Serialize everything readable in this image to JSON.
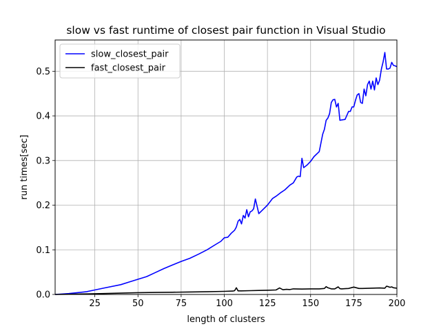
{
  "chart_data": {
    "type": "line",
    "title": "slow vs fast runtime of closest pair function in Visual Studio",
    "xlabel": "length of clusters",
    "ylabel": "run times[sec]",
    "xlim": [
      2,
      200
    ],
    "ylim": [
      0,
      0.57
    ],
    "xticks": [
      25,
      50,
      75,
      100,
      125,
      150,
      175,
      200
    ],
    "yticks": [
      0.0,
      0.1,
      0.2,
      0.3,
      0.4,
      0.5
    ],
    "grid": true,
    "legend_position": "upper-left",
    "series": [
      {
        "name": "slow_closest_pair",
        "color": "#0000ff",
        "x": [
          2,
          10,
          20,
          25,
          30,
          40,
          45,
          50,
          55,
          60,
          65,
          70,
          75,
          80,
          85,
          90,
          95,
          98,
          100,
          102,
          104,
          106,
          107,
          108,
          109,
          110,
          111,
          112,
          113,
          114,
          115,
          116,
          117,
          118,
          120,
          125,
          128,
          130,
          133,
          135,
          138,
          140,
          142,
          143,
          144,
          145,
          146,
          148,
          150,
          152,
          155,
          157,
          158,
          159,
          160,
          161,
          162,
          163,
          164,
          165,
          166,
          167,
          168,
          170,
          172,
          173,
          174,
          175,
          176,
          177,
          178,
          179,
          180,
          181,
          182,
          183,
          184,
          185,
          186,
          187,
          188,
          189,
          190,
          191,
          192,
          193,
          194,
          195,
          196,
          197,
          198,
          199,
          200
        ],
        "y": [
          0.0,
          0.002,
          0.006,
          0.01,
          0.014,
          0.022,
          0.028,
          0.034,
          0.04,
          0.049,
          0.058,
          0.066,
          0.074,
          0.081,
          0.09,
          0.1,
          0.112,
          0.119,
          0.127,
          0.128,
          0.137,
          0.144,
          0.151,
          0.164,
          0.168,
          0.158,
          0.177,
          0.171,
          0.19,
          0.174,
          0.185,
          0.187,
          0.192,
          0.214,
          0.181,
          0.2,
          0.215,
          0.22,
          0.229,
          0.234,
          0.245,
          0.25,
          0.263,
          0.265,
          0.264,
          0.305,
          0.284,
          0.29,
          0.298,
          0.309,
          0.32,
          0.359,
          0.37,
          0.39,
          0.395,
          0.405,
          0.43,
          0.436,
          0.437,
          0.42,
          0.428,
          0.39,
          0.391,
          0.392,
          0.41,
          0.41,
          0.42,
          0.42,
          0.435,
          0.447,
          0.45,
          0.43,
          0.428,
          0.46,
          0.445,
          0.47,
          0.478,
          0.46,
          0.478,
          0.458,
          0.485,
          0.47,
          0.48,
          0.505,
          0.521,
          0.542,
          0.505,
          0.505,
          0.507,
          0.52,
          0.513,
          0.512,
          0.51
        ]
      },
      {
        "name": "fast_closest_pair",
        "color": "#000000",
        "x": [
          2,
          10,
          20,
          30,
          40,
          50,
          60,
          70,
          80,
          90,
          100,
          105,
          106,
          107,
          108,
          110,
          115,
          120,
          125,
          130,
          132,
          134,
          136,
          138,
          140,
          145,
          150,
          155,
          158,
          159,
          160,
          162,
          164,
          166,
          167,
          168,
          170,
          172,
          175,
          178,
          180,
          185,
          190,
          193,
          194,
          195,
          196,
          197,
          198,
          200
        ],
        "y": [
          0.0,
          0.0005,
          0.0012,
          0.002,
          0.003,
          0.004,
          0.0045,
          0.005,
          0.0055,
          0.006,
          0.007,
          0.0075,
          0.0085,
          0.015,
          0.008,
          0.008,
          0.0085,
          0.009,
          0.0095,
          0.01,
          0.0145,
          0.0105,
          0.0115,
          0.011,
          0.0125,
          0.012,
          0.0125,
          0.0125,
          0.0135,
          0.0175,
          0.015,
          0.0125,
          0.0125,
          0.017,
          0.013,
          0.0125,
          0.013,
          0.0135,
          0.0165,
          0.0135,
          0.0135,
          0.014,
          0.0145,
          0.014,
          0.0185,
          0.0175,
          0.016,
          0.017,
          0.015,
          0.014
        ]
      }
    ]
  }
}
